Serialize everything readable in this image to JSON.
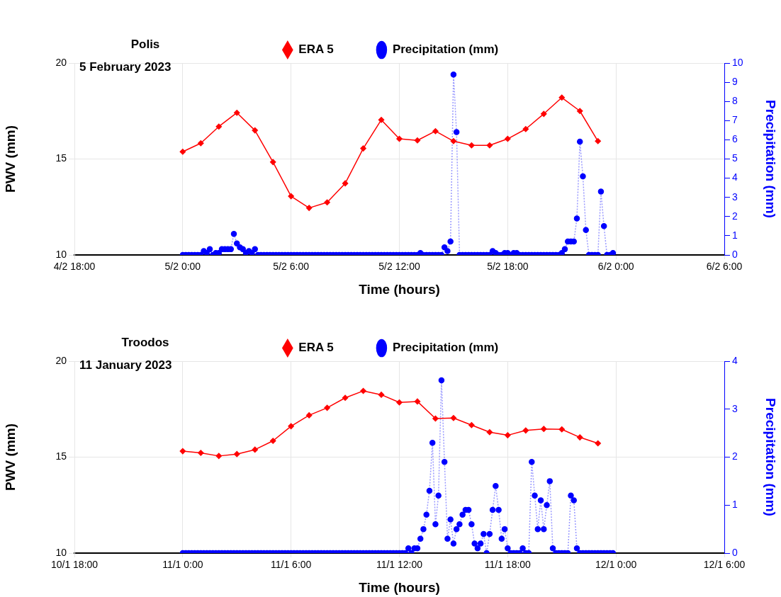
{
  "chart_data": [
    {
      "type": "line",
      "title": "Polis",
      "subtitle": "5 February 2023",
      "xlabel": "Time (hours)",
      "ylabel": "PWV (mm)",
      "y2label": "Precipitation (mm)",
      "xlim": [
        "2023-02-04T18:00",
        "2023-02-06T06:00"
      ],
      "xticks": [
        {
          "value": "2023-02-04T18:00",
          "label": "4/2 18:00"
        },
        {
          "value": "2023-02-05T00:00",
          "label": "5/2 0:00"
        },
        {
          "value": "2023-02-05T06:00",
          "label": "5/2 6:00"
        },
        {
          "value": "2023-02-05T12:00",
          "label": "5/2 12:00"
        },
        {
          "value": "2023-02-05T18:00",
          "label": "5/2 18:00"
        },
        {
          "value": "2023-02-06T00:00",
          "label": "6/2 0:00"
        },
        {
          "value": "2023-02-06T06:00",
          "label": "6/2 6:00"
        }
      ],
      "ylim": [
        10,
        20
      ],
      "yticks": [
        10,
        15,
        20
      ],
      "y2lim": [
        0,
        10
      ],
      "y2ticks": [
        0,
        1,
        2,
        3,
        4,
        5,
        6,
        7,
        8,
        9,
        10
      ],
      "grid": true,
      "legend": "top",
      "series": [
        {
          "name": "ERA 5",
          "color": "#ff0000",
          "marker": "diamond",
          "line_style": "solid",
          "x": [
            "2023-02-05T00:00",
            "2023-02-05T01:00",
            "2023-02-05T02:00",
            "2023-02-05T03:00",
            "2023-02-05T04:00",
            "2023-02-05T05:00",
            "2023-02-05T06:00",
            "2023-02-05T07:00",
            "2023-02-05T08:00",
            "2023-02-05T09:00",
            "2023-02-05T10:00",
            "2023-02-05T11:00",
            "2023-02-05T12:00",
            "2023-02-05T13:00",
            "2023-02-05T14:00",
            "2023-02-05T15:00",
            "2023-02-05T16:00",
            "2023-02-05T17:00",
            "2023-02-05T18:00",
            "2023-02-05T19:00",
            "2023-02-05T20:00",
            "2023-02-05T21:00",
            "2023-02-05T22:00",
            "2023-02-05T23:00"
          ],
          "values": [
            15.38,
            15.82,
            16.69,
            17.41,
            16.49,
            14.84,
            13.06,
            12.45,
            12.74,
            13.73,
            15.55,
            17.04,
            16.05,
            15.97,
            16.45,
            15.93,
            15.71,
            15.71,
            16.05,
            16.56,
            17.35,
            18.2,
            17.5,
            15.93
          ]
        },
        {
          "name": "Precipitation (mm)",
          "axis": "y2",
          "color": "#0000ff",
          "marker": "circle",
          "line_style": "dotted",
          "x": [
            "2023-02-05T00:00",
            "2023-02-05T00:10",
            "2023-02-05T00:20",
            "2023-02-05T00:30",
            "2023-02-05T00:40",
            "2023-02-05T00:50",
            "2023-02-05T01:00",
            "2023-02-05T01:10",
            "2023-02-05T01:20",
            "2023-02-05T01:30",
            "2023-02-05T01:40",
            "2023-02-05T01:50",
            "2023-02-05T02:00",
            "2023-02-05T02:10",
            "2023-02-05T02:20",
            "2023-02-05T02:30",
            "2023-02-05T02:40",
            "2023-02-05T02:50",
            "2023-02-05T03:00",
            "2023-02-05T03:10",
            "2023-02-05T03:20",
            "2023-02-05T03:30",
            "2023-02-05T03:40",
            "2023-02-05T03:50",
            "2023-02-05T04:00",
            "2023-02-05T04:10",
            "2023-02-05T04:20",
            "2023-02-05T04:30",
            "2023-02-05T04:40",
            "2023-02-05T04:50",
            "2023-02-05T05:00",
            "2023-02-05T05:10",
            "2023-02-05T05:20",
            "2023-02-05T05:30",
            "2023-02-05T05:40",
            "2023-02-05T05:50",
            "2023-02-05T06:00",
            "2023-02-05T06:10",
            "2023-02-05T06:20",
            "2023-02-05T06:30",
            "2023-02-05T06:40",
            "2023-02-05T06:50",
            "2023-02-05T07:00",
            "2023-02-05T07:10",
            "2023-02-05T07:20",
            "2023-02-05T07:30",
            "2023-02-05T07:40",
            "2023-02-05T07:50",
            "2023-02-05T08:00",
            "2023-02-05T08:10",
            "2023-02-05T08:20",
            "2023-02-05T08:30",
            "2023-02-05T08:40",
            "2023-02-05T08:50",
            "2023-02-05T09:00",
            "2023-02-05T09:10",
            "2023-02-05T09:20",
            "2023-02-05T09:30",
            "2023-02-05T09:40",
            "2023-02-05T09:50",
            "2023-02-05T10:00",
            "2023-02-05T10:10",
            "2023-02-05T10:20",
            "2023-02-05T10:30",
            "2023-02-05T10:40",
            "2023-02-05T10:50",
            "2023-02-05T11:00",
            "2023-02-05T11:10",
            "2023-02-05T11:20",
            "2023-02-05T11:30",
            "2023-02-05T11:40",
            "2023-02-05T11:50",
            "2023-02-05T12:00",
            "2023-02-05T12:10",
            "2023-02-05T12:20",
            "2023-02-05T12:30",
            "2023-02-05T12:40",
            "2023-02-05T12:50",
            "2023-02-05T13:00",
            "2023-02-05T13:10",
            "2023-02-05T13:20",
            "2023-02-05T13:30",
            "2023-02-05T13:40",
            "2023-02-05T13:50",
            "2023-02-05T14:00",
            "2023-02-05T14:10",
            "2023-02-05T14:20",
            "2023-02-05T14:30",
            "2023-02-05T14:40",
            "2023-02-05T14:50",
            "2023-02-05T15:00",
            "2023-02-05T15:10",
            "2023-02-05T15:20",
            "2023-02-05T15:30",
            "2023-02-05T15:40",
            "2023-02-05T15:50",
            "2023-02-05T16:00",
            "2023-02-05T16:10",
            "2023-02-05T16:20",
            "2023-02-05T16:30",
            "2023-02-05T16:40",
            "2023-02-05T16:50",
            "2023-02-05T17:00",
            "2023-02-05T17:10",
            "2023-02-05T17:20",
            "2023-02-05T17:30",
            "2023-02-05T17:40",
            "2023-02-05T17:50",
            "2023-02-05T18:00",
            "2023-02-05T18:10",
            "2023-02-05T18:20",
            "2023-02-05T18:30",
            "2023-02-05T18:40",
            "2023-02-05T18:50",
            "2023-02-05T19:00",
            "2023-02-05T19:10",
            "2023-02-05T19:20",
            "2023-02-05T19:30",
            "2023-02-05T19:40",
            "2023-02-05T19:50",
            "2023-02-05T20:00",
            "2023-02-05T20:10",
            "2023-02-05T20:20",
            "2023-02-05T20:30",
            "2023-02-05T20:40",
            "2023-02-05T20:50",
            "2023-02-05T21:00",
            "2023-02-05T21:10",
            "2023-02-05T21:20",
            "2023-02-05T21:30",
            "2023-02-05T21:40",
            "2023-02-05T21:50",
            "2023-02-05T22:00",
            "2023-02-05T22:10",
            "2023-02-05T22:20",
            "2023-02-05T22:30",
            "2023-02-05T22:40",
            "2023-02-05T22:50",
            "2023-02-05T23:00",
            "2023-02-05T23:10",
            "2023-02-05T23:20",
            "2023-02-05T23:30",
            "2023-02-05T23:40",
            "2023-02-05T23:50"
          ],
          "values": [
            0,
            0,
            0,
            0,
            0,
            0,
            0,
            0.2,
            0.1,
            0.3,
            0,
            0.1,
            0.1,
            0.3,
            0.3,
            0.3,
            0.3,
            1.1,
            0.6,
            0.4,
            0.3,
            0.1,
            0.2,
            0.1,
            0.3,
            0,
            0,
            0,
            0,
            0,
            0,
            0,
            0,
            0,
            0,
            0,
            0,
            0,
            0,
            0,
            0,
            0,
            0,
            0,
            0,
            0,
            0,
            0,
            0,
            0,
            0,
            0,
            0,
            0,
            0,
            0,
            0,
            0,
            0,
            0,
            0,
            0,
            0,
            0,
            0,
            0,
            0,
            0,
            0,
            0,
            0,
            0,
            0,
            0,
            0,
            0,
            0,
            0,
            0,
            0.1,
            0,
            0,
            0,
            0,
            0,
            0,
            0,
            0.4,
            0.2,
            0.7,
            9.4,
            6.4,
            0,
            0,
            0,
            0,
            0,
            0,
            0,
            0,
            0,
            0,
            0,
            0.2,
            0.1,
            0,
            0,
            0.1,
            0.1,
            0,
            0.1,
            0.1,
            0,
            0,
            0,
            0,
            0,
            0,
            0,
            0,
            0,
            0,
            0,
            0,
            0,
            0,
            0.1,
            0.3,
            0.7,
            0.7,
            0.7,
            1.9,
            5.9,
            4.1,
            1.3,
            0,
            0,
            0,
            0,
            3.3,
            1.5,
            0,
            0,
            0.1
          ]
        }
      ]
    },
    {
      "type": "line",
      "title": "Troodos",
      "subtitle": "11 January 2023",
      "xlabel": "Time (hours)",
      "ylabel": "PWV (mm)",
      "y2label": "Precipitation (mm)",
      "xlim": [
        "2023-01-10T18:00",
        "2023-01-12T06:00"
      ],
      "xticks": [
        {
          "value": "2023-01-10T18:00",
          "label": "10/1 18:00"
        },
        {
          "value": "2023-01-11T00:00",
          "label": "11/1 0:00"
        },
        {
          "value": "2023-01-11T06:00",
          "label": "11/1 6:00"
        },
        {
          "value": "2023-01-11T12:00",
          "label": "11/1 12:00"
        },
        {
          "value": "2023-01-11T18:00",
          "label": "11/1 18:00"
        },
        {
          "value": "2023-01-12T00:00",
          "label": "12/1 0:00"
        },
        {
          "value": "2023-01-12T06:00",
          "label": "12/1 6:00"
        }
      ],
      "ylim": [
        10,
        20
      ],
      "yticks": [
        10,
        15,
        20
      ],
      "y2lim": [
        0,
        4
      ],
      "y2ticks": [
        0,
        1,
        2,
        3,
        4
      ],
      "grid": true,
      "legend": "top",
      "series": [
        {
          "name": "ERA 5",
          "color": "#ff0000",
          "marker": "diamond",
          "line_style": "solid",
          "x": [
            "2023-01-11T00:00",
            "2023-01-11T01:00",
            "2023-01-11T02:00",
            "2023-01-11T03:00",
            "2023-01-11T04:00",
            "2023-01-11T05:00",
            "2023-01-11T06:00",
            "2023-01-11T07:00",
            "2023-01-11T08:00",
            "2023-01-11T09:00",
            "2023-01-11T10:00",
            "2023-01-11T11:00",
            "2023-01-11T12:00",
            "2023-01-11T13:00",
            "2023-01-11T14:00",
            "2023-01-11T15:00",
            "2023-01-11T16:00",
            "2023-01-11T17:00",
            "2023-01-11T18:00",
            "2023-01-11T19:00",
            "2023-01-11T20:00",
            "2023-01-11T21:00",
            "2023-01-11T22:00",
            "2023-01-11T23:00"
          ],
          "values": [
            15.31,
            15.22,
            15.06,
            15.16,
            15.39,
            15.85,
            16.61,
            17.18,
            17.57,
            18.09,
            18.45,
            18.25,
            17.85,
            17.9,
            17.01,
            17.04,
            16.67,
            16.3,
            16.14,
            16.39,
            16.47,
            16.45,
            16.03,
            15.72
          ]
        },
        {
          "name": "Precipitation (mm)",
          "axis": "y2",
          "color": "#0000ff",
          "marker": "circle",
          "line_style": "dotted",
          "x": [
            "2023-01-11T00:00",
            "2023-01-11T00:10",
            "2023-01-11T00:20",
            "2023-01-11T00:30",
            "2023-01-11T00:40",
            "2023-01-11T00:50",
            "2023-01-11T01:00",
            "2023-01-11T01:10",
            "2023-01-11T01:20",
            "2023-01-11T01:30",
            "2023-01-11T01:40",
            "2023-01-11T01:50",
            "2023-01-11T02:00",
            "2023-01-11T02:10",
            "2023-01-11T02:20",
            "2023-01-11T02:30",
            "2023-01-11T02:40",
            "2023-01-11T02:50",
            "2023-01-11T03:00",
            "2023-01-11T03:10",
            "2023-01-11T03:20",
            "2023-01-11T03:30",
            "2023-01-11T03:40",
            "2023-01-11T03:50",
            "2023-01-11T04:00",
            "2023-01-11T04:10",
            "2023-01-11T04:20",
            "2023-01-11T04:30",
            "2023-01-11T04:40",
            "2023-01-11T04:50",
            "2023-01-11T05:00",
            "2023-01-11T05:10",
            "2023-01-11T05:20",
            "2023-01-11T05:30",
            "2023-01-11T05:40",
            "2023-01-11T05:50",
            "2023-01-11T06:00",
            "2023-01-11T06:10",
            "2023-01-11T06:20",
            "2023-01-11T06:30",
            "2023-01-11T06:40",
            "2023-01-11T06:50",
            "2023-01-11T07:00",
            "2023-01-11T07:10",
            "2023-01-11T07:20",
            "2023-01-11T07:30",
            "2023-01-11T07:40",
            "2023-01-11T07:50",
            "2023-01-11T08:00",
            "2023-01-11T08:10",
            "2023-01-11T08:20",
            "2023-01-11T08:30",
            "2023-01-11T08:40",
            "2023-01-11T08:50",
            "2023-01-11T09:00",
            "2023-01-11T09:10",
            "2023-01-11T09:20",
            "2023-01-11T09:30",
            "2023-01-11T09:40",
            "2023-01-11T09:50",
            "2023-01-11T10:00",
            "2023-01-11T10:10",
            "2023-01-11T10:20",
            "2023-01-11T10:30",
            "2023-01-11T10:40",
            "2023-01-11T10:50",
            "2023-01-11T11:00",
            "2023-01-11T11:10",
            "2023-01-11T11:20",
            "2023-01-11T11:30",
            "2023-01-11T11:40",
            "2023-01-11T11:50",
            "2023-01-11T12:00",
            "2023-01-11T12:10",
            "2023-01-11T12:20",
            "2023-01-11T12:30",
            "2023-01-11T12:40",
            "2023-01-11T12:50",
            "2023-01-11T13:00",
            "2023-01-11T13:10",
            "2023-01-11T13:20",
            "2023-01-11T13:30",
            "2023-01-11T13:40",
            "2023-01-11T13:50",
            "2023-01-11T14:00",
            "2023-01-11T14:10",
            "2023-01-11T14:20",
            "2023-01-11T14:30",
            "2023-01-11T14:40",
            "2023-01-11T14:50",
            "2023-01-11T15:00",
            "2023-01-11T15:10",
            "2023-01-11T15:20",
            "2023-01-11T15:30",
            "2023-01-11T15:40",
            "2023-01-11T15:50",
            "2023-01-11T16:00",
            "2023-01-11T16:10",
            "2023-01-11T16:20",
            "2023-01-11T16:30",
            "2023-01-11T16:40",
            "2023-01-11T16:50",
            "2023-01-11T17:00",
            "2023-01-11T17:10",
            "2023-01-11T17:20",
            "2023-01-11T17:30",
            "2023-01-11T17:40",
            "2023-01-11T17:50",
            "2023-01-11T18:00",
            "2023-01-11T18:10",
            "2023-01-11T18:20",
            "2023-01-11T18:30",
            "2023-01-11T18:40",
            "2023-01-11T18:50",
            "2023-01-11T19:00",
            "2023-01-11T19:10",
            "2023-01-11T19:20",
            "2023-01-11T19:30",
            "2023-01-11T19:40",
            "2023-01-11T19:50",
            "2023-01-11T20:00",
            "2023-01-11T20:10",
            "2023-01-11T20:20",
            "2023-01-11T20:30",
            "2023-01-11T20:40",
            "2023-01-11T20:50",
            "2023-01-11T21:00",
            "2023-01-11T21:10",
            "2023-01-11T21:20",
            "2023-01-11T21:30",
            "2023-01-11T21:40",
            "2023-01-11T21:50",
            "2023-01-11T22:00",
            "2023-01-11T22:10",
            "2023-01-11T22:20",
            "2023-01-11T22:30",
            "2023-01-11T22:40",
            "2023-01-11T22:50",
            "2023-01-11T23:00",
            "2023-01-11T23:10",
            "2023-01-11T23:20",
            "2023-01-11T23:30",
            "2023-01-11T23:40",
            "2023-01-11T23:50"
          ],
          "values": [
            0,
            0,
            0,
            0,
            0,
            0,
            0,
            0,
            0,
            0,
            0,
            0,
            0,
            0,
            0,
            0,
            0,
            0,
            0,
            0,
            0,
            0,
            0,
            0,
            0,
            0,
            0,
            0,
            0,
            0,
            0,
            0,
            0,
            0,
            0,
            0,
            0,
            0,
            0,
            0,
            0,
            0,
            0,
            0,
            0,
            0,
            0,
            0,
            0,
            0,
            0,
            0,
            0,
            0,
            0,
            0,
            0,
            0,
            0,
            0,
            0,
            0,
            0,
            0,
            0,
            0,
            0,
            0,
            0,
            0,
            0,
            0,
            0,
            0,
            0,
            0.1,
            0,
            0.1,
            0.1,
            0.3,
            0.5,
            0.8,
            1.3,
            2.3,
            0.6,
            1.2,
            3.6,
            1.9,
            0.3,
            0.7,
            0.2,
            0.5,
            0.6,
            0.8,
            0.9,
            0.9,
            0.6,
            0.2,
            0.1,
            0.2,
            0.4,
            0,
            0.4,
            0.9,
            1.4,
            0.9,
            0.3,
            0.5,
            0.1,
            0,
            0,
            0,
            0,
            0.1,
            0,
            0,
            1.9,
            1.2,
            0.5,
            1.1,
            0.5,
            1.0,
            1.5,
            0.1,
            0,
            0,
            0,
            0,
            0,
            1.2,
            1.1,
            0.1,
            0,
            0,
            0,
            0,
            0,
            0,
            0,
            0,
            0,
            0,
            0,
            0
          ]
        }
      ]
    }
  ]
}
